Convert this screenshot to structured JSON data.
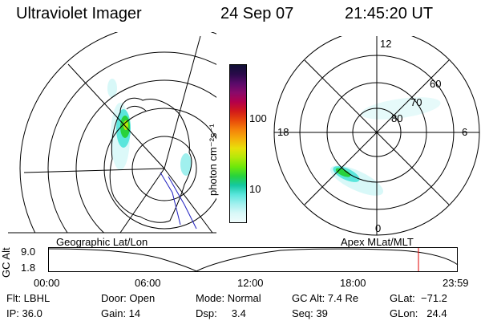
{
  "header": {
    "title": "Ultraviolet Imager",
    "date": "24 Sep 07",
    "time": "21:45:20 UT"
  },
  "colorbar": {
    "label": "photon cm⁻²s⁻¹",
    "ticks": [
      "100",
      "10"
    ],
    "colors": [
      "#101035",
      "#2a0a4a",
      "#5a0a6a",
      "#8a0a6a",
      "#b4004a",
      "#d21a1a",
      "#e84a0a",
      "#f5820a",
      "#f5b00a",
      "#e8e00a",
      "#b4e80a",
      "#6ee80a",
      "#28d23c",
      "#14c8a0",
      "#5ae6dc",
      "#a0f0ee",
      "#d8f8f8",
      "#f0fcfc"
    ]
  },
  "left_map": {
    "caption": "Geographic Lat/Lon"
  },
  "right_map": {
    "caption": "Apex MLat/MLT",
    "mlt_labels": {
      "top": "12",
      "left": "18",
      "right": "6",
      "bottom": "0"
    },
    "lat_labels": [
      "60",
      "70",
      "80"
    ]
  },
  "orbit_plot": {
    "ylabel": "GC Alt",
    "yticks": [
      "9.0",
      "1.8"
    ],
    "xticks": [
      "00:00",
      "06:00",
      "12:00",
      "18:00",
      "23:59"
    ],
    "marker_color": "#e00000"
  },
  "info": {
    "filter": "Flt: LBHL",
    "ip": "IP: 36.0",
    "door": "Door: Open",
    "gain": "Gain: 14",
    "mode": "Mode: Normal",
    "dsp": "Dsp:     3.4",
    "gc_alt": "GC Alt: 7.4 Re",
    "seq": "Seq: 39",
    "glat": "GLat:  −71.2",
    "glon": "GLon:   24.4"
  }
}
